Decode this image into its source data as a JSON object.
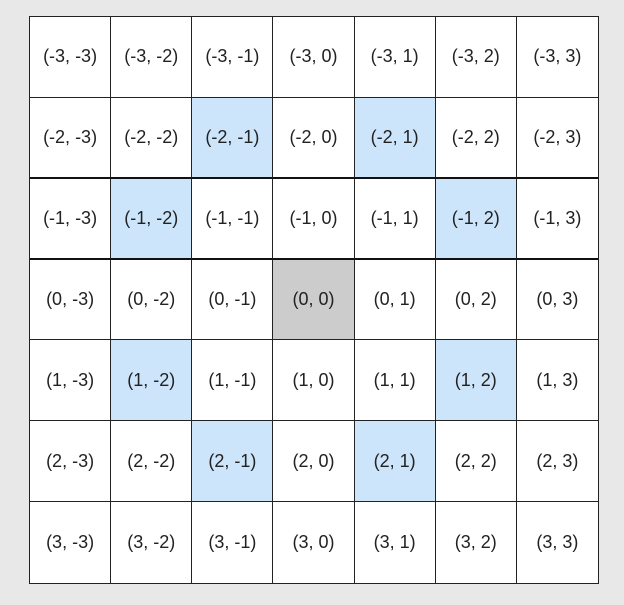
{
  "colors": {
    "highlight": "#cce5fb",
    "origin": "#cccccc",
    "cell": "#ffffff",
    "background": "#e8e8e8"
  },
  "grid": {
    "rows": [
      [
        "(-3, -3)",
        "(-3, -2)",
        "(-3, -1)",
        "(-3, 0)",
        "(-3, 1)",
        "(-3, 2)",
        "(-3, 3)"
      ],
      [
        "(-2, -3)",
        "(-2, -2)",
        "(-2, -1)",
        "(-2, 0)",
        "(-2, 1)",
        "(-2, 2)",
        "(-2, 3)"
      ],
      [
        "(-1, -3)",
        "(-1, -2)",
        "(-1, -1)",
        "(-1, 0)",
        "(-1, 1)",
        "(-1, 2)",
        "(-1, 3)"
      ],
      [
        "(0, -3)",
        "(0, -2)",
        "(0, -1)",
        "(0, 0)",
        "(0, 1)",
        "(0, 2)",
        "(0, 3)"
      ],
      [
        "(1, -3)",
        "(1, -2)",
        "(1, -1)",
        "(1, 0)",
        "(1, 1)",
        "(1, 2)",
        "(1, 3)"
      ],
      [
        "(2, -3)",
        "(2, -2)",
        "(2, -1)",
        "(2, 0)",
        "(2, 1)",
        "(2, 2)",
        "(2, 3)"
      ],
      [
        "(3, -3)",
        "(3, -2)",
        "(3, -1)",
        "(3, 0)",
        "(3, 1)",
        "(3, 2)",
        "(3, 3)"
      ]
    ],
    "highlighted": [
      "(-2, -1)",
      "(-2, 1)",
      "(-1, -2)",
      "(-1, 2)",
      "(1, -2)",
      "(1, 2)",
      "(2, -1)",
      "(2, 1)"
    ],
    "origin": "(0, 0)"
  }
}
